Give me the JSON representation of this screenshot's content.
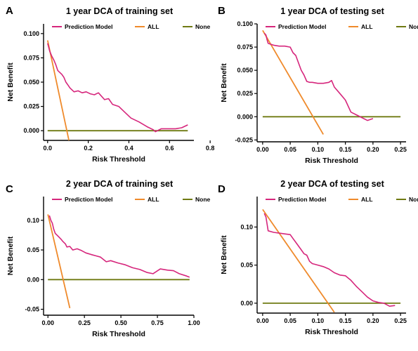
{
  "colors": {
    "prediction": "#d6267c",
    "all": "#ef8a2b",
    "none": "#6f7a12",
    "axis": "#000000"
  },
  "chart_data": [
    {
      "type": "line",
      "panel": "A",
      "title": "1 year DCA of training set",
      "xlabel": "Risk Threshold",
      "ylabel": "Net Benefit",
      "xlim": [
        -0.02,
        0.72
      ],
      "ylim": [
        -0.01,
        0.11
      ],
      "xticks": [
        0.0,
        0.2,
        0.4,
        0.6,
        0.8
      ],
      "xtick_labels": [
        "0.0",
        "0.2",
        "0.4",
        "0.6",
        "0.8"
      ],
      "yticks": [
        0.0,
        0.025,
        0.05,
        0.075,
        0.1
      ],
      "ytick_labels": [
        "0.000",
        "0.025",
        "0.050",
        "0.075",
        "0.100"
      ],
      "legend": "top",
      "series": [
        {
          "name": "Prediction Model",
          "color_key": "prediction",
          "x": [
            0.0,
            0.01,
            0.02,
            0.03,
            0.04,
            0.05,
            0.06,
            0.07,
            0.08,
            0.09,
            0.1,
            0.11,
            0.12,
            0.13,
            0.15,
            0.17,
            0.19,
            0.21,
            0.23,
            0.25,
            0.28,
            0.3,
            0.32,
            0.35,
            0.38,
            0.41,
            0.45,
            0.49,
            0.52,
            0.53,
            0.56,
            0.6,
            0.63,
            0.66,
            0.69
          ],
          "y": [
            0.09,
            0.082,
            0.077,
            0.073,
            0.068,
            0.062,
            0.06,
            0.058,
            0.055,
            0.05,
            0.047,
            0.044,
            0.042,
            0.04,
            0.041,
            0.039,
            0.04,
            0.038,
            0.037,
            0.039,
            0.032,
            0.033,
            0.027,
            0.025,
            0.019,
            0.013,
            0.009,
            0.004,
            0.001,
            -0.001,
            0.002,
            0.002,
            0.002,
            0.003,
            0.006
          ]
        },
        {
          "name": "ALL",
          "color_key": "all",
          "x": [
            0.0,
            0.105
          ],
          "y": [
            0.093,
            -0.01
          ]
        },
        {
          "name": "None",
          "color_key": "none",
          "x": [
            0.0,
            0.69
          ],
          "y": [
            0.0,
            0.0
          ]
        }
      ]
    },
    {
      "type": "line",
      "panel": "B",
      "title": "1 year DCA of testing set",
      "xlabel": "Risk Threshold",
      "ylabel": "Net Benefit",
      "xlim": [
        -0.01,
        0.26
      ],
      "ylim": [
        -0.027,
        0.1
      ],
      "xticks": [
        0.0,
        0.05,
        0.1,
        0.15,
        0.2,
        0.25
      ],
      "xtick_labels": [
        "0.00",
        "0.05",
        "0.10",
        "0.15",
        "0.20",
        "0.25"
      ],
      "yticks": [
        -0.025,
        0.0,
        0.025,
        0.05,
        0.075,
        0.1
      ],
      "ytick_labels": [
        "-0.025",
        "0.000",
        "0.025",
        "0.050",
        "0.075",
        "0.100"
      ],
      "legend": "top",
      "series": [
        {
          "name": "Prediction Model",
          "color_key": "prediction",
          "x": [
            0.003,
            0.006,
            0.008,
            0.01,
            0.015,
            0.02,
            0.03,
            0.04,
            0.05,
            0.055,
            0.06,
            0.065,
            0.07,
            0.075,
            0.08,
            0.085,
            0.09,
            0.1,
            0.11,
            0.12,
            0.125,
            0.13,
            0.14,
            0.15,
            0.16,
            0.17,
            0.18,
            0.19,
            0.2
          ],
          "y": [
            0.09,
            0.088,
            0.083,
            0.079,
            0.078,
            0.077,
            0.076,
            0.076,
            0.075,
            0.069,
            0.066,
            0.058,
            0.05,
            0.045,
            0.038,
            0.037,
            0.037,
            0.036,
            0.036,
            0.037,
            0.039,
            0.032,
            0.025,
            0.018,
            0.005,
            0.002,
            -0.001,
            -0.004,
            -0.002
          ]
        },
        {
          "name": "ALL",
          "color_key": "all",
          "x": [
            0.0,
            0.11
          ],
          "y": [
            0.093,
            -0.019
          ]
        },
        {
          "name": "None",
          "color_key": "none",
          "x": [
            0.0,
            0.25
          ],
          "y": [
            0.0,
            0.0
          ]
        }
      ]
    },
    {
      "type": "line",
      "panel": "C",
      "title": "2 year DCA of training set",
      "xlabel": "Risk Threshold",
      "ylabel": "Net Benefit",
      "xlim": [
        -0.03,
        1.0
      ],
      "ylim": [
        -0.06,
        0.14
      ],
      "xticks": [
        0.0,
        0.25,
        0.5,
        0.75,
        1.0
      ],
      "xtick_labels": [
        "0.00",
        "0.25",
        "0.50",
        "0.75",
        "1.00"
      ],
      "yticks": [
        -0.05,
        0.0,
        0.05,
        0.1
      ],
      "ytick_labels": [
        "-0.05",
        "0.00",
        "0.05",
        "0.10"
      ],
      "legend": "top",
      "series": [
        {
          "name": "Prediction Model",
          "color_key": "prediction",
          "x": [
            0.01,
            0.02,
            0.03,
            0.04,
            0.05,
            0.07,
            0.09,
            0.1,
            0.12,
            0.13,
            0.15,
            0.17,
            0.2,
            0.23,
            0.26,
            0.3,
            0.33,
            0.36,
            0.4,
            0.43,
            0.48,
            0.53,
            0.58,
            0.63,
            0.68,
            0.72,
            0.77,
            0.82,
            0.86,
            0.9,
            0.95,
            0.97
          ],
          "y": [
            0.108,
            0.1,
            0.095,
            0.085,
            0.078,
            0.073,
            0.068,
            0.065,
            0.06,
            0.055,
            0.056,
            0.05,
            0.052,
            0.049,
            0.045,
            0.042,
            0.04,
            0.038,
            0.03,
            0.032,
            0.028,
            0.025,
            0.02,
            0.017,
            0.012,
            0.01,
            0.018,
            0.016,
            0.015,
            0.01,
            0.006,
            0.004
          ]
        },
        {
          "name": "ALL",
          "color_key": "all",
          "x": [
            0.0,
            0.15
          ],
          "y": [
            0.11,
            -0.048
          ]
        },
        {
          "name": "None",
          "color_key": "none",
          "x": [
            0.0,
            0.97
          ],
          "y": [
            0.0,
            0.0
          ]
        }
      ]
    },
    {
      "type": "line",
      "panel": "D",
      "title": "2 year DCA of testing set",
      "xlabel": "Risk Threshold",
      "ylabel": "Net Benefit",
      "xlim": [
        -0.01,
        0.26
      ],
      "ylim": [
        -0.013,
        0.14
      ],
      "xticks": [
        0.0,
        0.05,
        0.1,
        0.15,
        0.2,
        0.25
      ],
      "xtick_labels": [
        "0.00",
        "0.05",
        "0.10",
        "0.15",
        "0.20",
        "0.25"
      ],
      "yticks": [
        0.0,
        0.05,
        0.1
      ],
      "ytick_labels": [
        "0.00",
        "0.05",
        "0.10"
      ],
      "legend": "top",
      "series": [
        {
          "name": "Prediction Model",
          "color_key": "prediction",
          "x": [
            0.003,
            0.006,
            0.01,
            0.02,
            0.03,
            0.04,
            0.05,
            0.055,
            0.06,
            0.065,
            0.07,
            0.075,
            0.08,
            0.085,
            0.09,
            0.1,
            0.11,
            0.12,
            0.13,
            0.14,
            0.15,
            0.16,
            0.17,
            0.18,
            0.19,
            0.2,
            0.21,
            0.22,
            0.23,
            0.24
          ],
          "y": [
            0.118,
            0.113,
            0.095,
            0.093,
            0.092,
            0.091,
            0.09,
            0.085,
            0.08,
            0.075,
            0.07,
            0.065,
            0.063,
            0.055,
            0.052,
            0.05,
            0.048,
            0.045,
            0.04,
            0.037,
            0.036,
            0.03,
            0.022,
            0.015,
            0.008,
            0.003,
            0.001,
            0.0,
            -0.004,
            -0.003
          ]
        },
        {
          "name": "ALL",
          "color_key": "all",
          "x": [
            0.0,
            0.13
          ],
          "y": [
            0.123,
            -0.012
          ]
        },
        {
          "name": "None",
          "color_key": "none",
          "x": [
            0.0,
            0.25
          ],
          "y": [
            0.0,
            0.0
          ]
        }
      ]
    }
  ]
}
